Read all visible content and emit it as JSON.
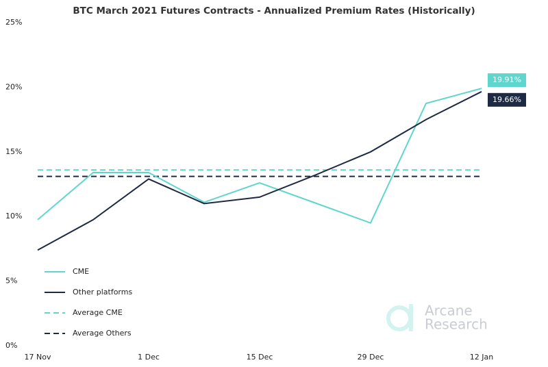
{
  "chart_data": {
    "type": "line",
    "title": "BTC March 2021 Futures Contracts - Annualized Premium Rates (Historically)",
    "categories": [
      "17 Nov",
      null,
      "1 Dec",
      null,
      "15 Dec",
      null,
      "29 Dec",
      null,
      "12 Jan"
    ],
    "series": [
      {
        "name": "CME",
        "color": "#5fd6cd",
        "values": [
          9.75,
          13.4,
          13.4,
          11.1,
          12.6,
          11.05,
          9.5,
          18.75,
          19.91
        ],
        "value_labels": [
          null,
          null,
          null,
          null,
          null,
          null,
          null,
          null,
          "19.91%"
        ]
      },
      {
        "name": "Other platforms",
        "color": "#1e2a44",
        "values": [
          7.4,
          9.75,
          12.9,
          11.0,
          11.5,
          13.2,
          15.0,
          17.5,
          19.66
        ],
        "value_labels": [
          null,
          null,
          null,
          null,
          null,
          null,
          null,
          null,
          "19.66%"
        ]
      }
    ],
    "reference_lines": [
      {
        "name": "Average CME",
        "value": 13.6,
        "color": "#5fd6cd"
      },
      {
        "name": "Average Others",
        "value": 13.1,
        "color": "#1e2a44"
      }
    ],
    "ylim": [
      0,
      25
    ],
    "yticks": [
      {
        "value": 0,
        "label": "0%"
      },
      {
        "value": 5,
        "label": "5%"
      },
      {
        "value": 10,
        "label": "10%"
      },
      {
        "value": 15,
        "label": "15%"
      },
      {
        "value": 20,
        "label": "20%"
      },
      {
        "value": 25,
        "label": "25%"
      }
    ],
    "grid": false,
    "legend": "lower left",
    "watermark": [
      "Arcane",
      "Research"
    ]
  }
}
